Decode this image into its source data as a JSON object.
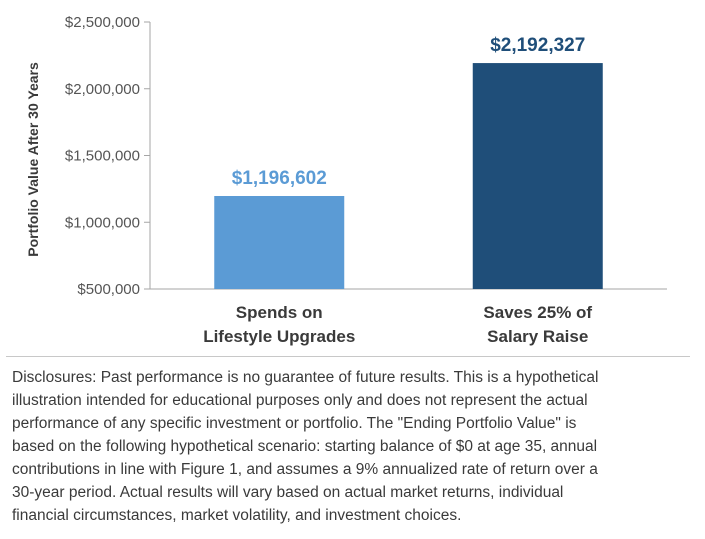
{
  "chart_data": {
    "type": "bar",
    "categories": [
      [
        "Spends on",
        "Lifestyle Upgrades"
      ],
      [
        "Saves 25% of",
        "Salary Raise"
      ]
    ],
    "values": [
      1196602,
      2192327
    ],
    "data_labels": [
      "$1,196,602",
      "$2,192,327"
    ],
    "bar_colors": [
      "#5b9bd5",
      "#1f4e79"
    ],
    "ylabel": "Portfolio Value After 30 Years",
    "ylim": [
      500000,
      2500000
    ],
    "yticks": [
      500000,
      1000000,
      1500000,
      2000000,
      2500000
    ],
    "ytick_labels": [
      "$500,000",
      "$1,000,000",
      "$1,500,000",
      "$2,000,000",
      "$2,500,000"
    ],
    "grid": false,
    "legend": "none"
  },
  "disclosure": "Disclosures: Past performance is no guarantee of future results. This is a hypothetical\nillustration intended for educational purposes only and does not represent the actual\nperformance of any specific investment or portfolio. The \"Ending Portfolio Value\" is\nbased on the following hypothetical scenario: starting balance of $0 at age 35, annual\ncontributions in line with Figure 1, and assumes a 9% annualized rate of return over a\n30-year period. Actual results will vary based on actual market returns, individual\nfinancial circumstances, market volatility, and investment choices."
}
